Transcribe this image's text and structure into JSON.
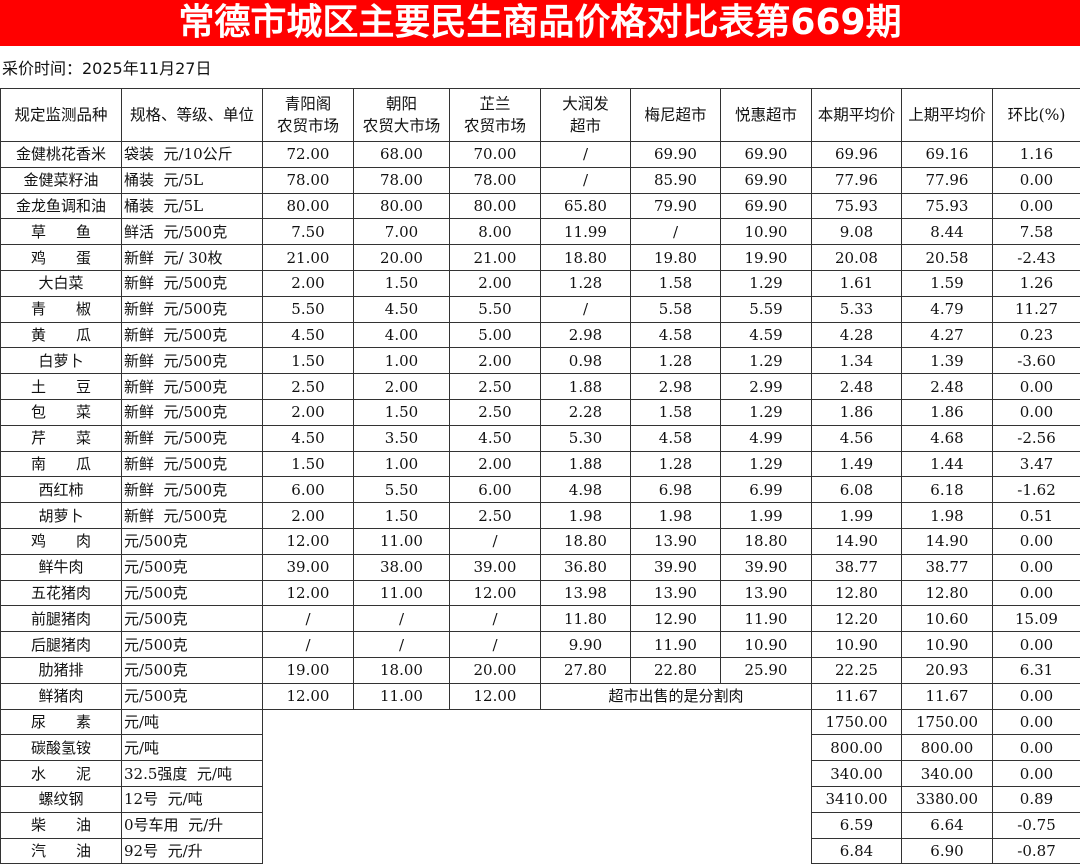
{
  "title": "常德市城区主要民生商品价格对比表第669期",
  "date_label": "采价时间：2025年11月27日",
  "headers": [
    "规定监测品种",
    "规格、等级、单位",
    "青阳阁\n农贸市场",
    "朝阳\n农贸大市场",
    "芷兰\n农贸市场",
    "大润发\n超市",
    "梅尼超市",
    "悦惠超市",
    "本期平均价",
    "上期平均价",
    "环比(%)"
  ],
  "rows": [
    [
      "金健桃花香米",
      "袋装  元/10公斤",
      "72.00",
      "68.00",
      "70.00",
      "/",
      "69.90",
      "69.90",
      "69.96",
      "69.16",
      "1.16"
    ],
    [
      "金健菜籽油",
      "桶装  元/5L",
      "78.00",
      "78.00",
      "78.00",
      "/",
      "85.90",
      "69.90",
      "77.96",
      "77.96",
      "0.00"
    ],
    [
      "金龙鱼调和油",
      "桶装  元/5L",
      "80.00",
      "80.00",
      "80.00",
      "65.80",
      "79.90",
      "69.90",
      "75.93",
      "75.93",
      "0.00"
    ],
    [
      "草　　鱼",
      "鲜活  元/500克",
      "7.50",
      "7.00",
      "8.00",
      "11.99",
      "/",
      "10.90",
      "9.08",
      "8.44",
      "7.58"
    ],
    [
      "鸡　　蛋",
      "新鲜  元/ 30枚",
      "21.00",
      "20.00",
      "21.00",
      "18.80",
      "19.80",
      "19.90",
      "20.08",
      "20.58",
      "-2.43"
    ],
    [
      "大白菜",
      "新鲜  元/500克",
      "2.00",
      "1.50",
      "2.00",
      "1.28",
      "1.58",
      "1.29",
      "1.61",
      "1.59",
      "1.26"
    ],
    [
      "青　　椒",
      "新鲜  元/500克",
      "5.50",
      "4.50",
      "5.50",
      "/",
      "5.58",
      "5.59",
      "5.33",
      "4.79",
      "11.27"
    ],
    [
      "黄　　瓜",
      "新鲜  元/500克",
      "4.50",
      "4.00",
      "5.00",
      "2.98",
      "4.58",
      "4.59",
      "4.28",
      "4.27",
      "0.23"
    ],
    [
      "白萝卜",
      "新鲜  元/500克",
      "1.50",
      "1.00",
      "2.00",
      "0.98",
      "1.28",
      "1.29",
      "1.34",
      "1.39",
      "-3.60"
    ],
    [
      "土　　豆",
      "新鲜  元/500克",
      "2.50",
      "2.00",
      "2.50",
      "1.88",
      "2.98",
      "2.99",
      "2.48",
      "2.48",
      "0.00"
    ],
    [
      "包　　菜",
      "新鲜  元/500克",
      "2.00",
      "1.50",
      "2.50",
      "2.28",
      "1.58",
      "1.29",
      "1.86",
      "1.86",
      "0.00"
    ],
    [
      "芹　　菜",
      "新鲜  元/500克",
      "4.50",
      "3.50",
      "4.50",
      "5.30",
      "4.58",
      "4.99",
      "4.56",
      "4.68",
      "-2.56"
    ],
    [
      "南　　瓜",
      "新鲜  元/500克",
      "1.50",
      "1.00",
      "2.00",
      "1.88",
      "1.28",
      "1.29",
      "1.49",
      "1.44",
      "3.47"
    ],
    [
      "西红柿",
      "新鲜  元/500克",
      "6.00",
      "5.50",
      "6.00",
      "4.98",
      "6.98",
      "6.99",
      "6.08",
      "6.18",
      "-1.62"
    ],
    [
      "胡萝卜",
      "新鲜  元/500克",
      "2.00",
      "1.50",
      "2.50",
      "1.98",
      "1.98",
      "1.99",
      "1.99",
      "1.98",
      "0.51"
    ],
    [
      "鸡　　肉",
      "元/500克",
      "12.00",
      "11.00",
      "/",
      "18.80",
      "13.90",
      "18.80",
      "14.90",
      "14.90",
      "0.00"
    ],
    [
      "鲜牛肉",
      "元/500克",
      "39.00",
      "38.00",
      "39.00",
      "36.80",
      "39.90",
      "39.90",
      "38.77",
      "38.77",
      "0.00"
    ],
    [
      "五花猪肉",
      "元/500克",
      "12.00",
      "11.00",
      "12.00",
      "13.98",
      "13.90",
      "13.90",
      "12.80",
      "12.80",
      "0.00"
    ],
    [
      "前腿猪肉",
      "元/500克",
      "/",
      "/",
      "/",
      "11.80",
      "12.90",
      "11.90",
      "12.20",
      "10.60",
      "15.09"
    ],
    [
      "后腿猪肉",
      "元/500克",
      "/",
      "/",
      "/",
      "9.90",
      "11.90",
      "10.90",
      "10.90",
      "10.90",
      "0.00"
    ],
    [
      "肋猪排",
      "元/500克",
      "19.00",
      "18.00",
      "20.00",
      "27.80",
      "22.80",
      "25.90",
      "22.25",
      "20.93",
      "6.31"
    ]
  ],
  "fresh_pork": [
    "鲜猪肉",
    "元/500克",
    "12.00",
    "11.00",
    "12.00",
    "超市出售的是分割肉",
    "11.67",
    "11.67",
    "0.00"
  ],
  "other_rows": [
    [
      "尿　　素",
      "元/吨",
      "1750.00",
      "1750.00",
      "0.00"
    ],
    [
      "碳酸氢铵",
      "元/吨",
      "800.00",
      "800.00",
      "0.00"
    ],
    [
      "水　　泥",
      "32.5强度  元/吨",
      "340.00",
      "340.00",
      "0.00"
    ],
    [
      "螺纹钢",
      "12号  元/吨",
      "3410.00",
      "3380.00",
      "0.89"
    ],
    [
      "柴　　油",
      "0号车用  元/升",
      "6.59",
      "6.64",
      "-0.75"
    ],
    [
      "汽　　油",
      "92号  元/升",
      "6.84",
      "6.90",
      "-0.87"
    ]
  ],
  "colors": {
    "title_bg": "#ff0000",
    "title_text": "#ffffff"
  }
}
